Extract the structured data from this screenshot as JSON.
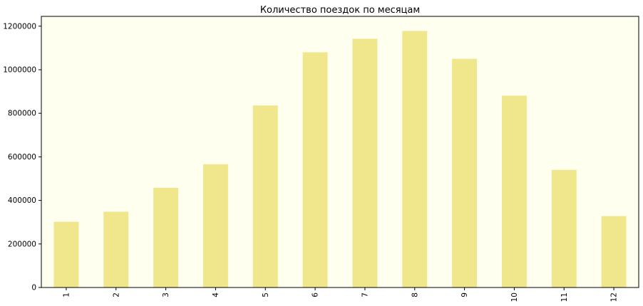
{
  "chart_data": {
    "type": "bar",
    "title": "Количество поездок по месяцам",
    "xlabel": "",
    "ylabel": "",
    "categories": [
      "1",
      "2",
      "3",
      "4",
      "5",
      "6",
      "7",
      "8",
      "9",
      "10",
      "11",
      "12"
    ],
    "values": [
      302000,
      348000,
      458000,
      566000,
      836000,
      1080000,
      1142000,
      1178000,
      1050000,
      881000,
      540000,
      328000
    ],
    "ylim": [
      0,
      1245000
    ],
    "yticks": [
      0,
      200000,
      400000,
      600000,
      800000,
      1000000,
      1200000
    ],
    "ytick_labels": [
      "0",
      "200000",
      "400000",
      "600000",
      "800000",
      "1000000",
      "1200000"
    ],
    "xtick_rotation": "vertical",
    "grid": false,
    "legend": "none",
    "bar_color": "#f0e68c",
    "plot_background": "#fffff0"
  }
}
